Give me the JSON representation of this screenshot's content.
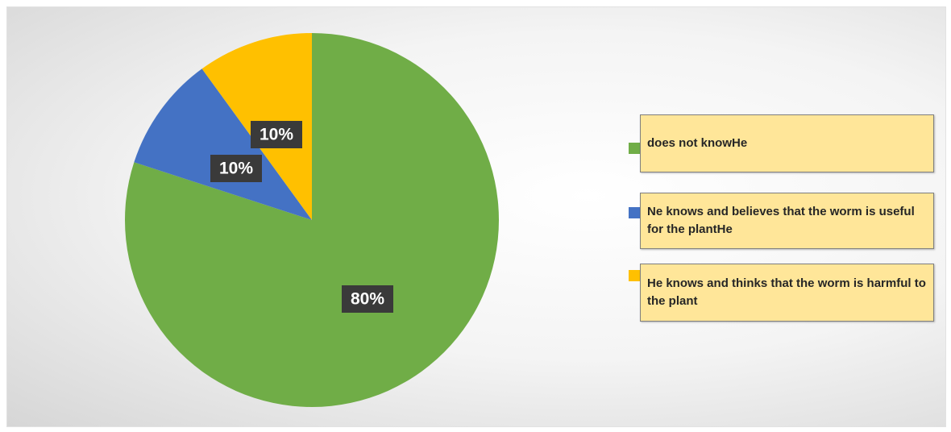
{
  "chart_data": {
    "type": "pie",
    "title": "",
    "slices": [
      {
        "label": "does not knowHe",
        "value": 80,
        "data_label": "80%",
        "color": "#70ad47"
      },
      {
        "label": "Ne knows and believes that the worm is useful for the plantHe",
        "value": 10,
        "data_label": "10%",
        "color": "#4472c4"
      },
      {
        "label": "He knows and thinks that the worm is harmful to the plant",
        "value": 10,
        "data_label": "10%",
        "color": "#ffc000"
      }
    ],
    "legend_position": "right"
  }
}
